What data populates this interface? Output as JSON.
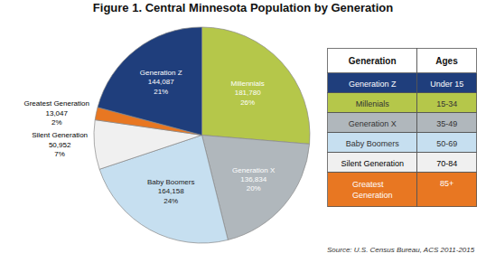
{
  "chart_data": {
    "type": "pie",
    "title": "Figure 1. Central Minnesota Population by Generation",
    "categories": [
      "Millennials",
      "Generation X",
      "Baby Boomers",
      "Silent Generation",
      "Greatest Generation",
      "Generation Z"
    ],
    "values": [
      181780,
      136834,
      164158,
      50952,
      13047,
      144087
    ],
    "value_labels": [
      "181,780",
      "136,834",
      "164,158",
      "50,952",
      "13,047",
      "144,087"
    ],
    "percentages": [
      26,
      20,
      24,
      7,
      2,
      21
    ],
    "percentage_labels": [
      "26%",
      "20%",
      "24%",
      "7%",
      "2%",
      "21%"
    ],
    "colors": [
      "#b5c74a",
      "#b0b7bc",
      "#c6dff0",
      "#f0f0f0",
      "#e87722",
      "#1f3e7c"
    ],
    "text_colors": [
      "#ffffff",
      "#ffffff",
      "#1a1a1a",
      "#000000",
      "#000000",
      "#ffffff"
    ],
    "outside_labels": [
      "Silent Generation",
      "Greatest Generation"
    ],
    "table": {
      "header": [
        "Generation",
        "Ages"
      ],
      "rows": [
        [
          "Generation Z",
          "Under 15"
        ],
        [
          "Millenials",
          "15-34"
        ],
        [
          "Generation X",
          "35-49"
        ],
        [
          "Baby Boomers",
          "50-69"
        ],
        [
          "Silent Generation",
          "70-84"
        ],
        [
          "Greatest Generation",
          "85+"
        ]
      ],
      "colors": [
        "#1f3e7c",
        "#b5c74a",
        "#b0b7bc",
        "#c6dff0",
        "#f0f0f0",
        "#e87722"
      ],
      "text_colors": [
        "#ffffff",
        "#333333",
        "#333333",
        "#333333",
        "#000000",
        "#ffffff"
      ]
    },
    "source": "Source: U.S. Census Bureau, ACS 2011-2015"
  }
}
